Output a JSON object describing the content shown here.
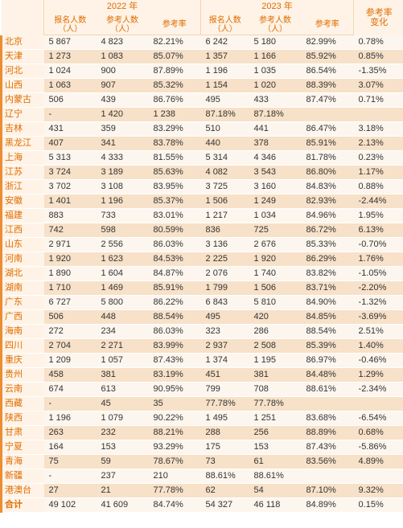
{
  "header": {
    "year1": "2022 年",
    "year2": "2023 年",
    "delta": "参考率\n变化",
    "cols": [
      "报名人数\n（人）",
      "参考人数\n（人）",
      "参考率",
      "报名人数\n（人）",
      "参考人数\n（人）",
      "参考率"
    ]
  },
  "rows": [
    {
      "n": "北京",
      "a": "5 867",
      "b": "4 823",
      "c": "82.21%",
      "d": "6 242",
      "e": "5 180",
      "f": "82.99%",
      "g": "0.78%"
    },
    {
      "n": "天津",
      "a": "1 273",
      "b": "1 083",
      "c": "85.07%",
      "d": "1 357",
      "e": "1 166",
      "f": "85.92%",
      "g": "0.85%"
    },
    {
      "n": "河北",
      "a": "1 024",
      "b": "900",
      "c": "87.89%",
      "d": "1 196",
      "e": "1 035",
      "f": "86.54%",
      "g": "-1.35%"
    },
    {
      "n": "山西",
      "a": "1 063",
      "b": "907",
      "c": "85.32%",
      "d": "1 154",
      "e": "1 020",
      "f": "88.39%",
      "g": "3.07%"
    },
    {
      "n": "内蒙古",
      "a": "506",
      "b": "439",
      "c": "86.76%",
      "d": "495",
      "e": "433",
      "f": "87.47%",
      "g": "0.71%"
    },
    {
      "n": "辽宁",
      "a": "-",
      "b": "1 420",
      "c": "1 238",
      "d": "87.18%",
      "e": "87.18%",
      "f": "",
      "g": ""
    },
    {
      "n": "吉林",
      "a": "431",
      "b": "359",
      "c": "83.29%",
      "d": "510",
      "e": "441",
      "f": "86.47%",
      "g": "3.18%"
    },
    {
      "n": "黑龙江",
      "a": "407",
      "b": "341",
      "c": "83.78%",
      "d": "440",
      "e": "378",
      "f": "85.91%",
      "g": "2.13%"
    },
    {
      "n": "上海",
      "a": "5 313",
      "b": "4 333",
      "c": "81.55%",
      "d": "5 314",
      "e": "4 346",
      "f": "81.78%",
      "g": "0.23%"
    },
    {
      "n": "江苏",
      "a": "3 724",
      "b": "3 189",
      "c": "85.63%",
      "d": "4 082",
      "e": "3 543",
      "f": "86.80%",
      "g": "1.17%"
    },
    {
      "n": "浙江",
      "a": "3 702",
      "b": "3 108",
      "c": "83.95%",
      "d": "3 725",
      "e": "3 160",
      "f": "84.83%",
      "g": "0.88%"
    },
    {
      "n": "安徽",
      "a": "1 401",
      "b": "1 196",
      "c": "85.37%",
      "d": "1 506",
      "e": "1 249",
      "f": "82.93%",
      "g": "-2.44%"
    },
    {
      "n": "福建",
      "a": "883",
      "b": "733",
      "c": "83.01%",
      "d": "1 217",
      "e": "1 034",
      "f": "84.96%",
      "g": "1.95%"
    },
    {
      "n": "江西",
      "a": "742",
      "b": "598",
      "c": "80.59%",
      "d": "836",
      "e": "725",
      "f": "86.72%",
      "g": "6.13%"
    },
    {
      "n": "山东",
      "a": "2 971",
      "b": "2 556",
      "c": "86.03%",
      "d": "3 136",
      "e": "2 676",
      "f": "85.33%",
      "g": "-0.70%"
    },
    {
      "n": "河南",
      "a": "1 920",
      "b": "1 623",
      "c": "84.53%",
      "d": "2 225",
      "e": "1 920",
      "f": "86.29%",
      "g": "1.76%"
    },
    {
      "n": "湖北",
      "a": "1 890",
      "b": "1 604",
      "c": "84.87%",
      "d": "2 076",
      "e": "1 740",
      "f": "83.82%",
      "g": "-1.05%"
    },
    {
      "n": "湖南",
      "a": "1 710",
      "b": "1 469",
      "c": "85.91%",
      "d": "1 799",
      "e": "1 506",
      "f": "83.71%",
      "g": "-2.20%"
    },
    {
      "n": "广东",
      "a": "6 727",
      "b": "5 800",
      "c": "86.22%",
      "d": "6 843",
      "e": "5 810",
      "f": "84.90%",
      "g": "-1.32%"
    },
    {
      "n": "广西",
      "a": "506",
      "b": "448",
      "c": "88.54%",
      "d": "495",
      "e": "420",
      "f": "84.85%",
      "g": "-3.69%"
    },
    {
      "n": "海南",
      "a": "272",
      "b": "234",
      "c": "86.03%",
      "d": "323",
      "e": "286",
      "f": "88.54%",
      "g": "2.51%"
    },
    {
      "n": "四川",
      "a": "2 704",
      "b": "2 271",
      "c": "83.99%",
      "d": "2 937",
      "e": "2 508",
      "f": "85.39%",
      "g": "1.40%"
    },
    {
      "n": "重庆",
      "a": "1 209",
      "b": "1 057",
      "c": "87.43%",
      "d": "1 374",
      "e": "1 195",
      "f": "86.97%",
      "g": "-0.46%"
    },
    {
      "n": "贵州",
      "a": "458",
      "b": "381",
      "c": "83.19%",
      "d": "451",
      "e": "381",
      "f": "84.48%",
      "g": "1.29%"
    },
    {
      "n": "云南",
      "a": "674",
      "b": "613",
      "c": "90.95%",
      "d": "799",
      "e": "708",
      "f": "88.61%",
      "g": "-2.34%"
    },
    {
      "n": "西藏",
      "a": "-",
      "b": "45",
      "c": "35",
      "d": "77.78%",
      "e": "77.78%",
      "f": "",
      "g": ""
    },
    {
      "n": "陕西",
      "a": "1 196",
      "b": "1 079",
      "c": "90.22%",
      "d": "1 495",
      "e": "1 251",
      "f": "83.68%",
      "g": "-6.54%"
    },
    {
      "n": "甘肃",
      "a": "263",
      "b": "232",
      "c": "88.21%",
      "d": "288",
      "e": "256",
      "f": "88.89%",
      "g": "0.68%"
    },
    {
      "n": "宁夏",
      "a": "164",
      "b": "153",
      "c": "93.29%",
      "d": "175",
      "e": "153",
      "f": "87.43%",
      "g": "-5.86%"
    },
    {
      "n": "青海",
      "a": "75",
      "b": "59",
      "c": "78.67%",
      "d": "73",
      "e": "61",
      "f": "83.56%",
      "g": "4.89%"
    },
    {
      "n": "新疆",
      "a": "-",
      "b": "237",
      "c": "210",
      "d": "88.61%",
      "e": "88.61%",
      "f": "",
      "g": ""
    },
    {
      "n": "港澳台",
      "a": "27",
      "b": "21",
      "c": "77.78%",
      "d": "62",
      "e": "54",
      "f": "87.10%",
      "g": "9.32%"
    },
    {
      "n": "合计",
      "a": "49 102",
      "b": "41 609",
      "c": "84.74%",
      "d": "54 327",
      "e": "46 118",
      "f": "84.89%",
      "g": "0.15%",
      "total": true
    }
  ],
  "colors": {
    "accent": "#e06c00",
    "header_bg": "#fef3e6",
    "row_odd": "#fdf6ee",
    "row_even": "#f7e1c8",
    "left_border": "#ec8c34",
    "line": "#f2d5b5"
  }
}
